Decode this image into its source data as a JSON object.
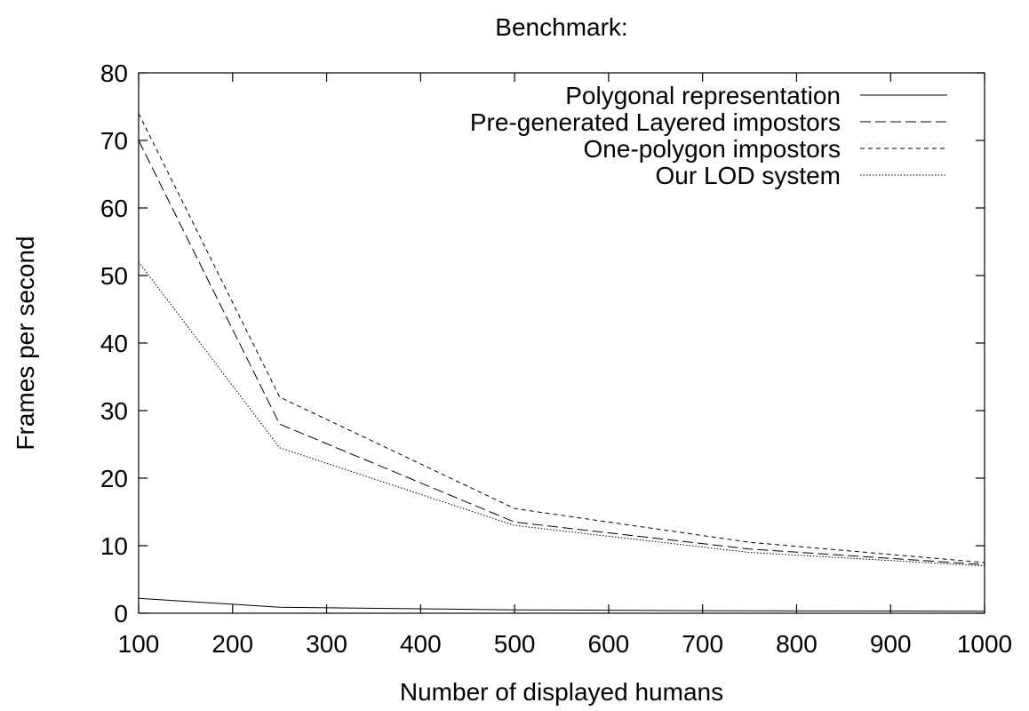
{
  "chart_data": {
    "type": "line",
    "title": "Benchmark:",
    "xlabel": "Number of displayed humans",
    "ylabel": "Frames per second",
    "xlim": [
      100,
      1000
    ],
    "ylim": [
      0,
      80
    ],
    "xticks": [
      100,
      200,
      300,
      400,
      500,
      600,
      700,
      800,
      900,
      1000
    ],
    "yticks": [
      0,
      10,
      20,
      30,
      40,
      50,
      60,
      70,
      80
    ],
    "grid": false,
    "legend_position": "top-right",
    "series": [
      {
        "name": "Polygonal representation",
        "dash": "solid",
        "x": [
          100,
          250,
          500,
          750,
          1000
        ],
        "y": [
          2.2,
          0.9,
          0.5,
          0.35,
          0.3
        ]
      },
      {
        "name": "Pre-generated Layered impostors",
        "dash": "long-dash",
        "x": [
          100,
          250,
          500,
          750,
          1000
        ],
        "y": [
          70,
          28,
          13.5,
          9.5,
          7.2
        ]
      },
      {
        "name": "One-polygon impostors",
        "dash": "short-dash",
        "x": [
          100,
          250,
          500,
          750,
          1000
        ],
        "y": [
          74,
          32,
          15.5,
          10.5,
          7.5
        ]
      },
      {
        "name": "Our LOD system",
        "dash": "dotted",
        "x": [
          100,
          250,
          500,
          750,
          1000
        ],
        "y": [
          52,
          24.5,
          13,
          9,
          7
        ]
      }
    ]
  }
}
